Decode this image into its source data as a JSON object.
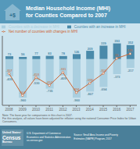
{
  "chart_data": {
    "type": "bar",
    "title": "Median Household Income (MHI)",
    "subtitle": "for Counties Compared to 2007",
    "categories": [
      "2008",
      "2009",
      "2010",
      "2011",
      "2012",
      "2013",
      "2014",
      "2015",
      "2016",
      "2017"
    ],
    "series": [
      {
        "name": "Counties with an increase in MHI",
        "type": "bar",
        "color": "#4a8aaa",
        "values": [
          73,
          56,
          77,
          83,
          78,
          126,
          209,
          339,
          393,
          352
        ]
      },
      {
        "name": "Counties with a decrease in MHI",
        "type": "bar",
        "color": "#aacfe0",
        "values": [
          -430,
          -960,
          -530,
          -735,
          -409,
          -960,
          -807,
          -694,
          -373,
          -217
        ]
      },
      {
        "name": "Net number of counties with changes in MHI",
        "type": "line",
        "color": "#cc6633",
        "marker": "circle",
        "values": [
          -357,
          -904,
          -453,
          -652,
          -331,
          -834,
          -598,
          -355,
          20,
          135
        ]
      }
    ],
    "ylim": [
      -1150,
      580
    ],
    "stacked": true,
    "data_labels": true,
    "tick_labels": "x",
    "grid": false,
    "legend": "top",
    "annotations": [
      "+$",
      "Note: The base year for comparisons in this chart is 2007.",
      "For this analysis, all values have been adjusted for inflation using the national Consumer Price Index for Urban Consumers.",
      "United States¹",
      "Census",
      "Bureau",
      "U.S. Department of Commerce",
      "Economics and Statistics Administration",
      "us.census.gov",
      "Source: Small Area Income and Poverty",
      "Estimates (SAIPE) Program, 2017"
    ]
  }
}
